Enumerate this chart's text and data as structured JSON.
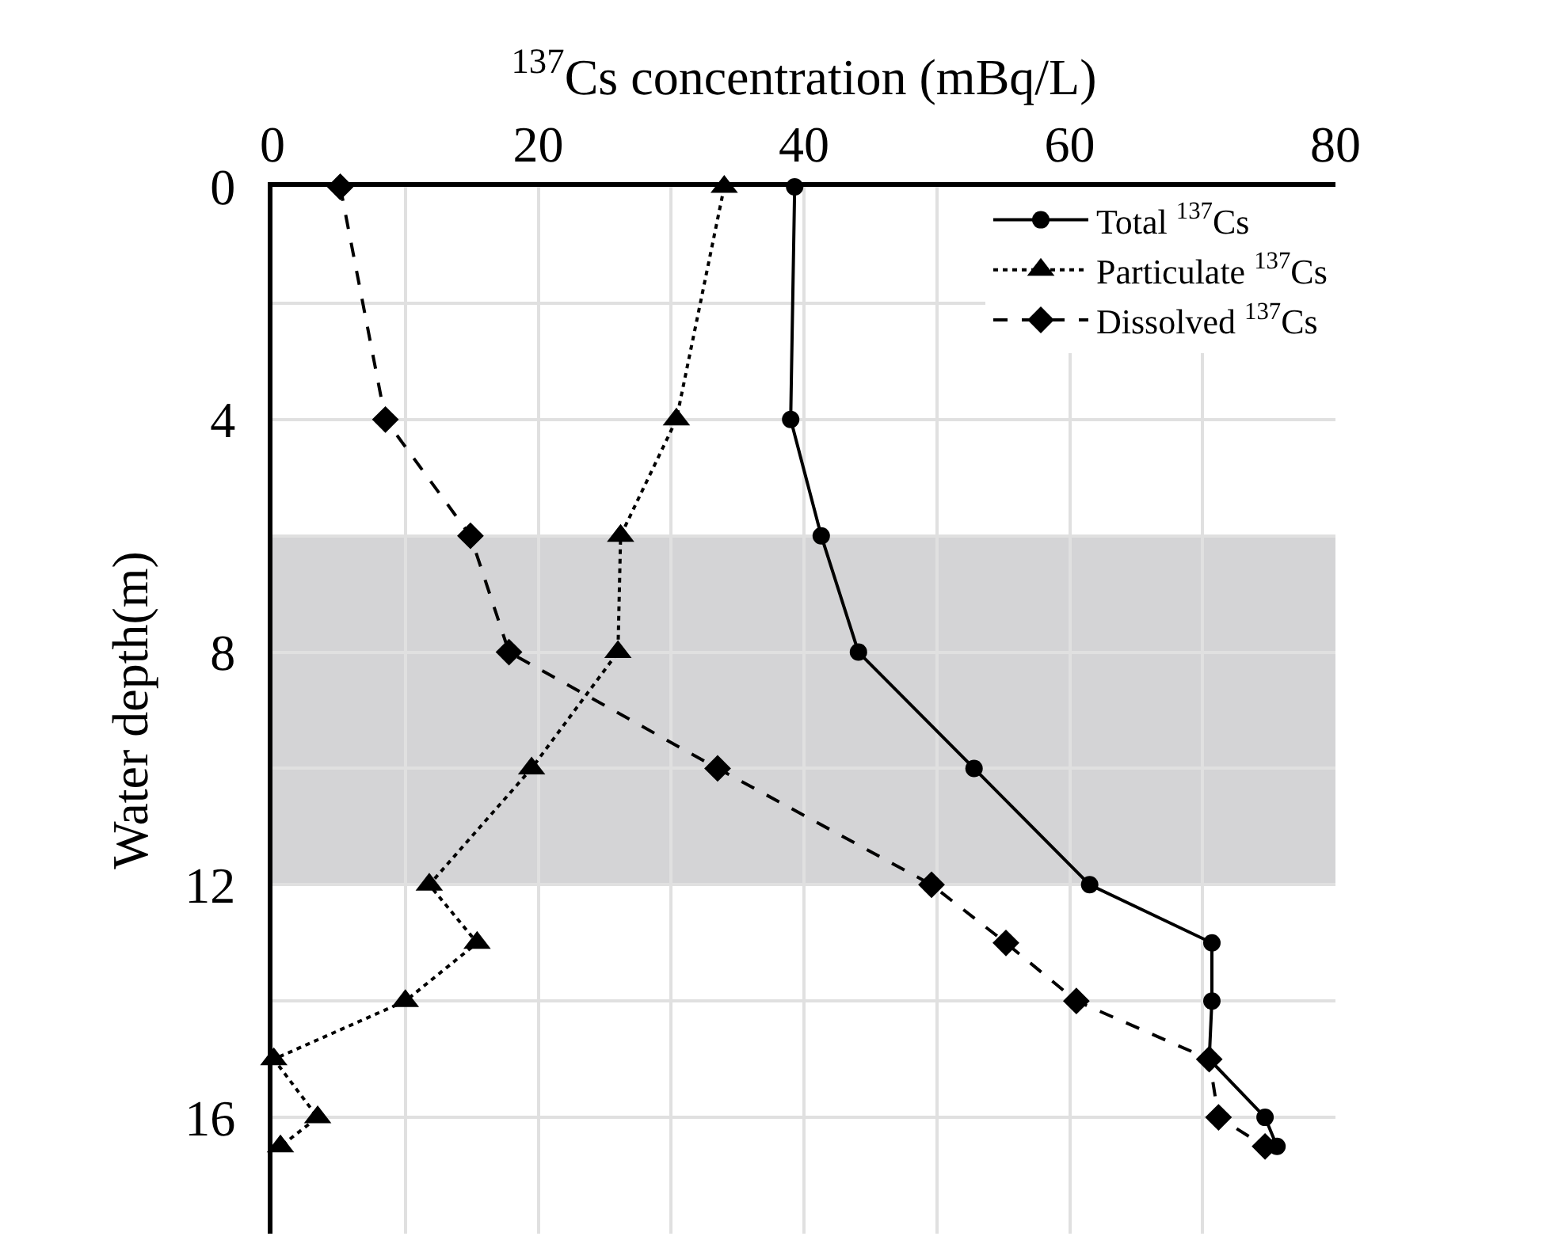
{
  "chart_data": {
    "type": "line",
    "xlabel": "$^{137}$Cs concentration (mBq/L)",
    "ylabel": "Water depth(m)",
    "series": [
      {
        "name": "Total $^{137}$Cs",
        "color": "#000000",
        "marker": "circle",
        "line_style": "solid",
        "x": [
          39.3,
          39.0,
          41.3,
          44.1,
          52.8,
          61.5,
          70.7,
          70.7,
          70.5,
          74.7,
          75.6
        ],
        "values": [
          0,
          4,
          6,
          8,
          10,
          12,
          13,
          14,
          15,
          16,
          16.5
        ]
      },
      {
        "name": "Particulate $^{137}$Cs",
        "color": "#000000",
        "marker": "triangle",
        "line_style": "dotted",
        "x": [
          34.0,
          30.4,
          26.2,
          26.0,
          19.5,
          11.8,
          15.4,
          10.0,
          0.1,
          3.4,
          0.6
        ],
        "values": [
          0,
          4,
          6,
          8,
          10,
          12,
          13,
          14,
          15,
          16,
          16.5
        ]
      },
      {
        "name": "Dissolved $^{137}$Cs",
        "color": "#000000",
        "marker": "diamond",
        "line_style": "dashed",
        "x": [
          5.1,
          8.5,
          14.9,
          17.8,
          33.5,
          49.6,
          55.2,
          60.5,
          70.5,
          71.2,
          74.7
        ],
        "values": [
          0,
          4,
          6,
          8,
          10,
          12,
          13,
          14,
          15,
          16,
          16.5
        ]
      }
    ],
    "xlim": [
      0,
      80
    ],
    "xticks": [
      0,
      {
        "value": 10,
        "label": null
      },
      20,
      {
        "value": 30,
        "label": null
      },
      40,
      {
        "value": 50,
        "label": null
      },
      60,
      {
        "value": 70,
        "label": null
      },
      80
    ],
    "ylim": [
      18,
      0
    ],
    "yticks": [
      0,
      {
        "value": 2,
        "label": null
      },
      4,
      {
        "value": 6,
        "label": null
      },
      8,
      {
        "value": 10,
        "label": null
      },
      12,
      {
        "value": 14,
        "label": null
      },
      16
    ],
    "bands": [
      {
        "axis": "y",
        "from": 6,
        "to": 12,
        "color": "#d4d4d6"
      }
    ],
    "grid": true,
    "legend": "top right"
  }
}
